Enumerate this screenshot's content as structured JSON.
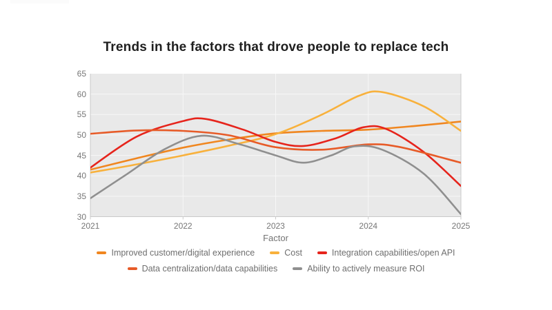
{
  "page": {
    "background": "#ffffff",
    "artifact_color": "#FBFBFB"
  },
  "chart_data": {
    "type": "line",
    "title": "Trends in the factors that drove people to replace tech",
    "xlabel": "Factor",
    "ylabel": "",
    "x_ticks": [
      "2021",
      "2022",
      "2023",
      "2024",
      "2025"
    ],
    "y_ticks": [
      65,
      60,
      55,
      50,
      45,
      40,
      35,
      30
    ],
    "ylim": [
      30,
      65
    ],
    "xlim": [
      2021,
      2025
    ],
    "grid": true,
    "legend_position": "bottom",
    "plot_background": "#E9E9E9",
    "gridline_color": "#F7F7F7",
    "axis_color": "#C9C9C9",
    "tick_label_color": "#767676",
    "title_color": "#1F1F1F",
    "legend_rows": [
      [
        0,
        1,
        2
      ],
      [
        3,
        4
      ]
    ],
    "series": [
      {
        "name": "Improved customer/digital experience",
        "color": "#F0861F",
        "values_by_year": [
          41.5,
          46.9,
          50.4,
          51.3,
          53.3
        ],
        "curve_points": [
          [
            2021,
            41.5
          ],
          [
            2021.5,
            44.3
          ],
          [
            2022,
            46.9
          ],
          [
            2022.5,
            48.9
          ],
          [
            2023,
            50.4
          ],
          [
            2023.5,
            51.0
          ],
          [
            2024,
            51.3
          ],
          [
            2024.5,
            52.2
          ],
          [
            2025,
            53.3
          ]
        ]
      },
      {
        "name": "Cost",
        "color": "#F8B13C",
        "values_by_year": [
          40.8,
          45.0,
          50.2,
          60.3,
          51.0
        ],
        "curve_points": [
          [
            2021,
            40.8
          ],
          [
            2021.5,
            42.8
          ],
          [
            2022,
            45.0
          ],
          [
            2022.5,
            47.4
          ],
          [
            2023,
            50.2
          ],
          [
            2023.5,
            55.0
          ],
          [
            2023.9,
            59.6
          ],
          [
            2024.15,
            60.5
          ],
          [
            2024.6,
            57.0
          ],
          [
            2025,
            51.0
          ]
        ]
      },
      {
        "name": "Integration capabilities/open API",
        "color": "#E6241C",
        "values_by_year": [
          42.0,
          53.4,
          48.3,
          51.9,
          37.5
        ],
        "curve_points": [
          [
            2021,
            42.0
          ],
          [
            2021.5,
            49.6
          ],
          [
            2022,
            53.4
          ],
          [
            2022.25,
            53.9
          ],
          [
            2022.65,
            51.3
          ],
          [
            2023,
            48.3
          ],
          [
            2023.3,
            47.3
          ],
          [
            2023.65,
            49.2
          ],
          [
            2023.95,
            51.9
          ],
          [
            2024.2,
            51.4
          ],
          [
            2024.6,
            45.8
          ],
          [
            2025,
            37.5
          ]
        ]
      },
      {
        "name": "Data centralization/data capabilities",
        "color": "#E75B28",
        "values_by_year": [
          50.3,
          51.0,
          47.0,
          47.7,
          43.2
        ],
        "curve_points": [
          [
            2021,
            50.3
          ],
          [
            2021.5,
            51.1
          ],
          [
            2022,
            51.0
          ],
          [
            2022.5,
            49.9
          ],
          [
            2023,
            47.0
          ],
          [
            2023.5,
            46.4
          ],
          [
            2024,
            47.7
          ],
          [
            2024.35,
            47.0
          ],
          [
            2025,
            43.2
          ]
        ]
      },
      {
        "name": "Ability to actively measure ROI",
        "color": "#8F8F8F",
        "values_by_year": [
          34.5,
          49.3,
          45.0,
          46.6,
          30.6
        ],
        "curve_points": [
          [
            2021,
            34.5
          ],
          [
            2021.4,
            40.5
          ],
          [
            2021.8,
            46.5
          ],
          [
            2022.2,
            49.8
          ],
          [
            2022.6,
            47.8
          ],
          [
            2023,
            45.0
          ],
          [
            2023.3,
            43.2
          ],
          [
            2023.6,
            45.0
          ],
          [
            2023.85,
            47.2
          ],
          [
            2024.15,
            46.4
          ],
          [
            2024.6,
            40.5
          ],
          [
            2025,
            30.6
          ]
        ]
      }
    ]
  }
}
